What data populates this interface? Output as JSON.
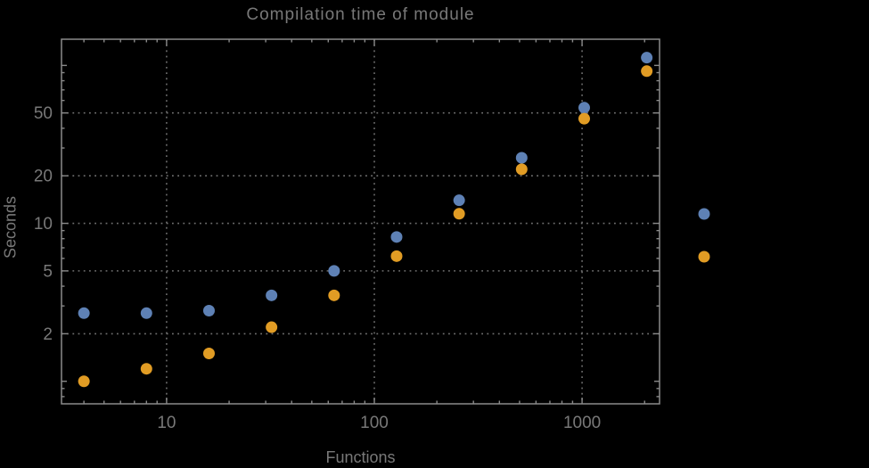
{
  "colors": {
    "background": "#000000",
    "frame": "#8a8a8a",
    "grid": "#707070",
    "text": "#787878",
    "series_blue": "#5E81B5",
    "series_orange": "#E19C24"
  },
  "chart_data": {
    "type": "scatter",
    "title": "Compilation time of module",
    "xlabel": "Functions",
    "ylabel": "Seconds",
    "log_x": true,
    "log_y": true,
    "xlim": [
      3.12,
      2360
    ],
    "ylim": [
      0.72,
      146.5
    ],
    "grid": "dotted lines at labeled major ticks",
    "x_axis": {
      "tick_values": [
        10,
        100,
        1000
      ],
      "tick_labels": [
        "10",
        "100",
        "1000"
      ]
    },
    "y_axis": {
      "tick_values": [
        2,
        5,
        10,
        20,
        50
      ],
      "tick_labels": [
        "2",
        "5",
        "10",
        "20",
        "50"
      ]
    },
    "x": [
      4,
      8,
      16,
      32,
      64,
      128,
      256,
      512,
      1024,
      2048
    ],
    "series": [
      {
        "name": "blue",
        "color": "#5E81B5",
        "values": [
          2.7,
          2.7,
          2.8,
          3.5,
          5.0,
          8.2,
          14,
          26,
          54,
          112
        ]
      },
      {
        "name": "orange",
        "color": "#E19C24",
        "values": [
          1.0,
          1.2,
          1.5,
          2.2,
          3.5,
          6.2,
          11.5,
          22,
          46,
          92
        ]
      }
    ],
    "legend": {
      "position": "right-of-plot",
      "entries": [
        {
          "series": "blue",
          "color": "#5E81B5",
          "label": ""
        },
        {
          "series": "orange",
          "color": "#E19C24",
          "label": ""
        }
      ]
    }
  }
}
